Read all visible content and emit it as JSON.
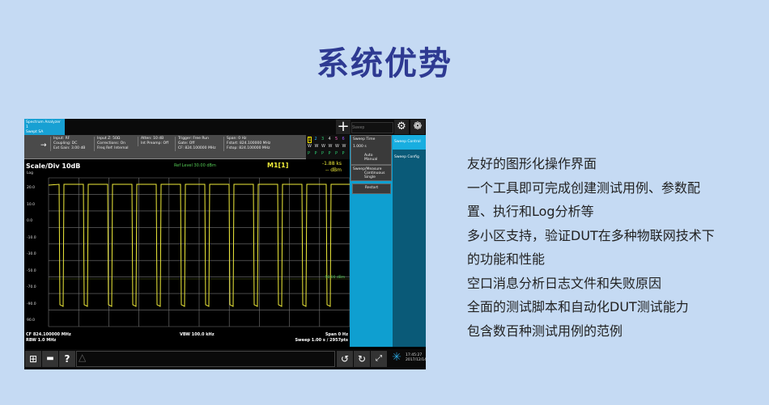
{
  "heading": "系统优势",
  "instrument": {
    "mode": "Spectrum Analyzer 1",
    "mode_sub": "Swept SA",
    "settings": [
      [
        "Input: RF",
        "Coupling: DC",
        "Ext Gain: 3.00 dB"
      ],
      [
        "Input Z: 50Ω",
        "Corrections: On",
        "Freq Ref: Internal"
      ],
      [
        "Atten: 10 dB",
        "Int Preamp: Off"
      ],
      [
        "Trigger: Free Run",
        "Gate: Off"
      ],
      [
        "CF: 824.100000 MHz"
      ],
      [
        "Span: 0 Hz",
        "Fstart: 824.100000 MHz",
        "Fstop: 824.100000 MHz"
      ]
    ],
    "traces": {
      "nums": [
        "1",
        "2",
        "3",
        "4",
        "5",
        "6"
      ],
      "types": [
        "W",
        "W",
        "W",
        "W",
        "W",
        "W"
      ],
      "dets": [
        "P",
        "P",
        "P",
        "P",
        "P",
        "P"
      ],
      "colors": [
        "#f5e400",
        "#27b5ff",
        "#2ecc71",
        "#dddddd",
        "#ff66cc",
        "#9b59ff"
      ]
    },
    "search_placeholder": "Sweep",
    "panel": {
      "sweep_time_label": "Sweep Time",
      "sweep_time_value": "1.000 s",
      "auto": "Auto",
      "manual": "Manual",
      "sweep_measure_label": "Sweep/Measure",
      "continuous": "Continuous",
      "single": "Single",
      "restart": "Restart"
    },
    "tabs": [
      "Sweep Control",
      "Sweep Config"
    ],
    "chart": {
      "scale": "Scale/Div 10dB",
      "scale_type": "Log",
      "center_note": "Ref Level 30.00 dBm",
      "marker": "M1[1]",
      "marker_x": "-1.88 ks",
      "marker_y": "-- dBm",
      "line_label": "-50.00 dBm",
      "yticks": [
        "20.0",
        "10.0",
        "0.0",
        "-10.0",
        "-30.0",
        "-50.0",
        "-70.0",
        "-90.0",
        "90.0"
      ],
      "trace_color": "#f0ec3a"
    },
    "footer": {
      "cf": "CF 824.100000 MHz",
      "rbw": "RBW 1.0 MHz",
      "vbw": "VBW 100.0 kHz",
      "span": "Span 0 Hz",
      "sweep": "Sweep 1.00 s / 2957pts"
    },
    "clock": {
      "time": "17:45:27",
      "date": "2017/12/14"
    }
  },
  "features": [
    "友好的图形化操作界面",
    "一个工具即可完成创建测试用例、参数配",
    "置、执行和Log分析等",
    "多小区支持，验证DUT在多种物联网技术下",
    "的功能和性能",
    "空口消息分析日志文件和失败原因",
    "全面的测试脚本和自动化DUT测试能力",
    "包含数百种测试用例的范例"
  ]
}
